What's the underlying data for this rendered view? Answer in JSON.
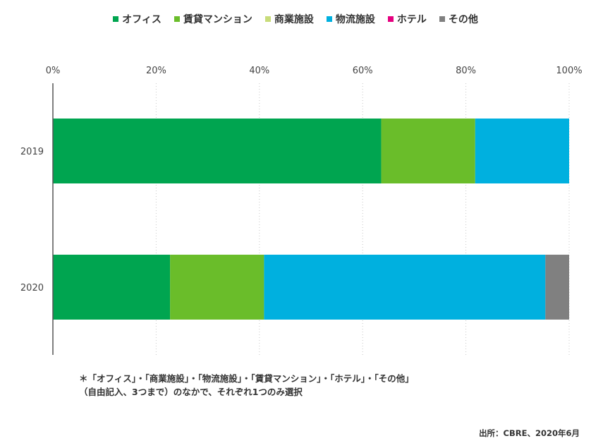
{
  "chart_data": {
    "type": "bar",
    "orientation": "horizontal",
    "stacked": true,
    "categories": [
      "2019",
      "2020"
    ],
    "x_tick_labels": [
      "0%",
      "20%",
      "40%",
      "60%",
      "80%",
      "100%"
    ],
    "xlim": [
      0,
      100
    ],
    "legend_position": "top",
    "grid": "vertical-dotted",
    "series": [
      {
        "name": "オフィス",
        "color": "#00A550",
        "values": [
          63.6,
          22.7
        ]
      },
      {
        "name": "賃貸マンション",
        "color": "#6ABD2A",
        "values": [
          18.2,
          18.2
        ]
      },
      {
        "name": "商業施設",
        "color": "#C8DC7A",
        "values": [
          0,
          0
        ]
      },
      {
        "name": "物流施設",
        "color": "#00B0DF",
        "values": [
          18.2,
          54.5
        ]
      },
      {
        "name": "ホテル",
        "color": "#E5007F",
        "values": [
          0,
          0
        ]
      },
      {
        "name": "その他",
        "color": "#808080",
        "values": [
          0,
          4.6
        ]
      }
    ]
  },
  "note": {
    "line1": "＊「オフィス」・「商業施設」・「物流施設」・「賃貸マンション」・「ホテル」・「その他」",
    "line2": "（自由記入、3つまで）のなかで、それぞれ1つのみ選択"
  },
  "source": "出所：CBRE、2020年6月"
}
